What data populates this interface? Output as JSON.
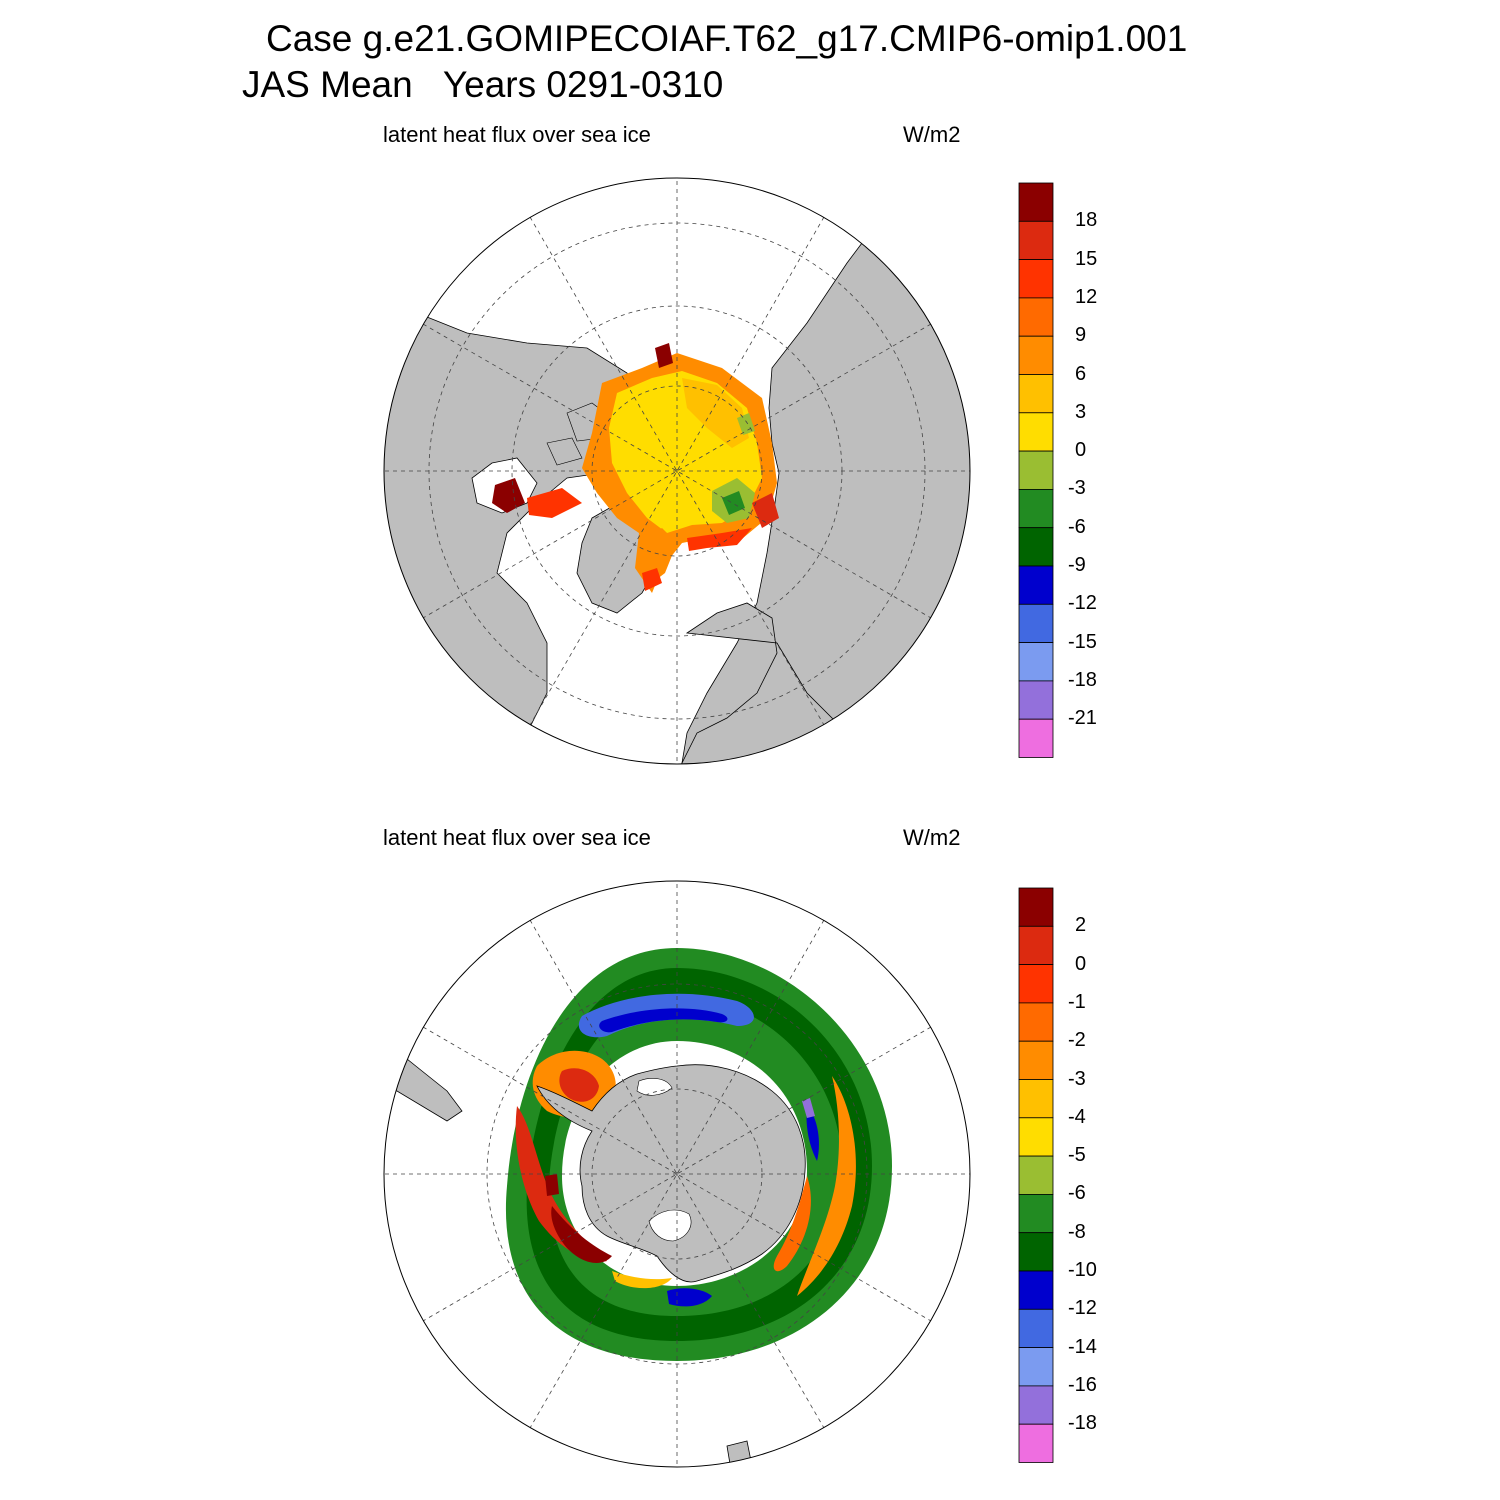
{
  "header": {
    "case_line": "Case g.e21.GOMIPECOIAF.T62_g17.CMIP6-omip1.001",
    "period_line": "JAS Mean   Years 0291-0310"
  },
  "colors": {
    "land": "#bebebe",
    "ocean": "#ffffff",
    "palette": [
      "#ee6ee0",
      "#9370db",
      "#7b9bf0",
      "#4169e1",
      "#0000cd",
      "#006400",
      "#228b22",
      "#9abe32",
      "#ffdd00",
      "#ffc000",
      "#ff8c00",
      "#ff6a00",
      "#ff3300",
      "#dc2a10",
      "#8b0000"
    ]
  },
  "panels": [
    {
      "name": "arctic",
      "hemisphere": "north",
      "variable": "latent heat flux over sea ice",
      "units": "W/m2",
      "colorbar_labels": [
        "18",
        "15",
        "12",
        "9",
        "6",
        "3",
        "0",
        "-3",
        "-6",
        "-9",
        "-12",
        "-15",
        "-18",
        "-21"
      ]
    },
    {
      "name": "antarctic",
      "hemisphere": "south",
      "variable": "latent heat flux over sea ice",
      "units": "W/m2",
      "colorbar_labels": [
        "2",
        "0",
        "-1",
        "-2",
        "-3",
        "-4",
        "-5",
        "-6",
        "-8",
        "-10",
        "-12",
        "-14",
        "-16",
        "-18"
      ]
    }
  ]
}
